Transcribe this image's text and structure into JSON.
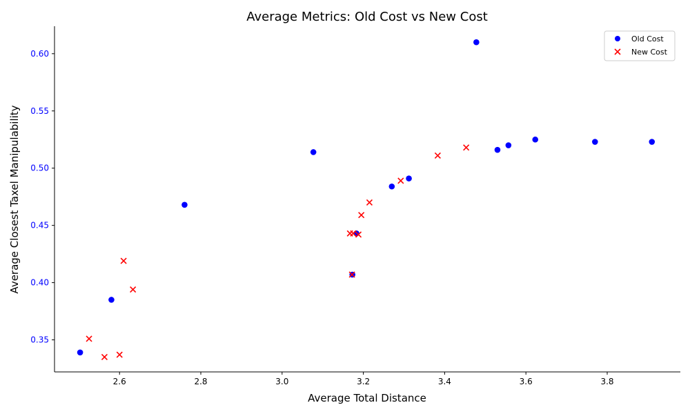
{
  "colors": {
    "old_cost": "#0000ff",
    "new_cost": "#ff0000",
    "ylabel": "#0000ff",
    "y_ticks": "#0000ff",
    "axes": "#000000"
  },
  "chart_data": {
    "type": "scatter",
    "title": "Average Metrics: Old Cost vs New Cost",
    "xlabel": "Average Total Distance",
    "ylabel": "Average Closest Taxel Manipulability",
    "xlim": [
      2.44,
      3.98
    ],
    "ylim": [
      0.322,
      0.624
    ],
    "xticks": [
      2.6,
      2.8,
      3.0,
      3.2,
      3.4,
      3.6,
      3.8
    ],
    "yticks": [
      0.35,
      0.4,
      0.45,
      0.5,
      0.55,
      0.6
    ],
    "xtick_labels": [
      "2.6",
      "2.8",
      "3.0",
      "3.2",
      "3.4",
      "3.6",
      "3.8"
    ],
    "ytick_labels": [
      "0.35",
      "0.40",
      "0.45",
      "0.50",
      "0.55",
      "0.60"
    ],
    "grid": false,
    "legend_position": "top-right",
    "series": [
      {
        "name": "Old Cost",
        "marker": "circle",
        "points": [
          [
            2.503,
            0.339
          ],
          [
            2.58,
            0.385
          ],
          [
            2.76,
            0.468
          ],
          [
            3.077,
            0.514
          ],
          [
            3.173,
            0.407
          ],
          [
            3.183,
            0.443
          ],
          [
            3.27,
            0.484
          ],
          [
            3.312,
            0.491
          ],
          [
            3.478,
            0.61
          ],
          [
            3.53,
            0.516
          ],
          [
            3.557,
            0.52
          ],
          [
            3.623,
            0.525
          ],
          [
            3.77,
            0.523
          ],
          [
            3.91,
            0.523
          ]
        ]
      },
      {
        "name": "New Cost",
        "marker": "x",
        "points": [
          [
            2.525,
            0.351
          ],
          [
            2.563,
            0.335
          ],
          [
            2.6,
            0.337
          ],
          [
            2.61,
            0.419
          ],
          [
            2.633,
            0.394
          ],
          [
            3.167,
            0.443
          ],
          [
            3.175,
            0.443
          ],
          [
            3.172,
            0.407
          ],
          [
            3.188,
            0.442
          ],
          [
            3.195,
            0.459
          ],
          [
            3.215,
            0.47
          ],
          [
            3.292,
            0.489
          ],
          [
            3.383,
            0.511
          ],
          [
            3.453,
            0.518
          ]
        ]
      }
    ]
  }
}
